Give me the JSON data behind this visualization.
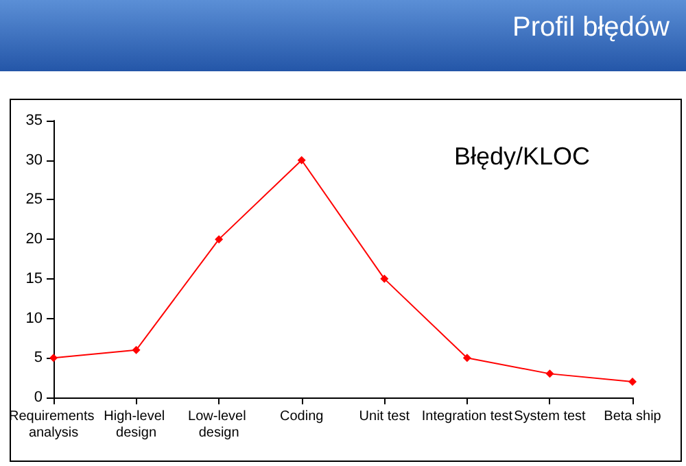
{
  "chart_data": {
    "type": "line",
    "title": "Profil błędów",
    "annotations": [
      "Błędy/KLOC"
    ],
    "categories": [
      "Requirements analysis",
      "High-level design",
      "Low-level design",
      "Coding",
      "Unit test",
      "Integration test",
      "System test",
      "Beta ship"
    ],
    "series": [
      {
        "color": "#ff0000",
        "values": [
          5,
          6,
          20,
          30,
          15,
          5,
          3,
          2
        ]
      }
    ],
    "ylim": [
      0,
      35
    ],
    "yticks": [
      0,
      5,
      10,
      15,
      20,
      25,
      30,
      35
    ],
    "grid": false,
    "marker": "diamond",
    "line_style": "solid"
  }
}
